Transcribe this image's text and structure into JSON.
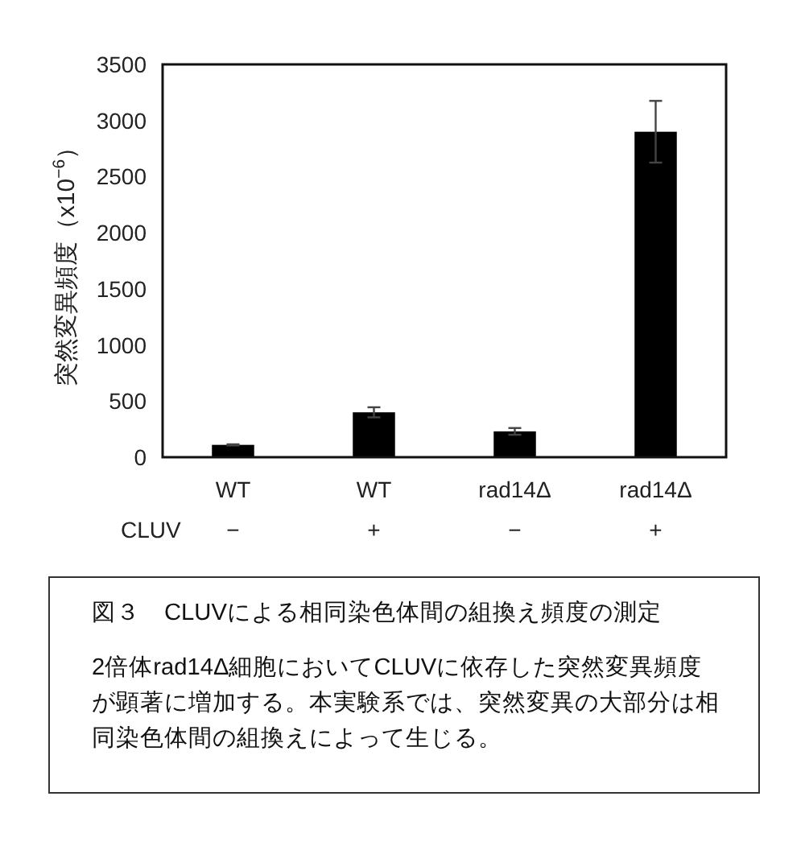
{
  "chart_data": {
    "type": "bar",
    "categories": [
      "WT",
      "WT",
      "rad14Δ",
      "rad14Δ"
    ],
    "values": [
      110,
      400,
      230,
      2900
    ],
    "errors": [
      5,
      45,
      30,
      275
    ],
    "color": "#000000",
    "ylabel": "突然変異頻度（x10$^{−6}$）",
    "ylim": [
      0,
      3500
    ],
    "yticks": [
      0,
      500,
      1000,
      1500,
      2000,
      2500,
      3000,
      3500
    ],
    "annotations": [
      "CLUV",
      "−",
      "+",
      "−",
      "+",
      "図３　CLUVによる相同染色体間の組換え頻度の測定",
      "2倍体rad14Δ細胞においてCLUVに依存した突然変異頻度が顕著に増加する。本実験系では、突然変異の大部分は相同染色体間の組換えによって生じる。"
    ]
  }
}
